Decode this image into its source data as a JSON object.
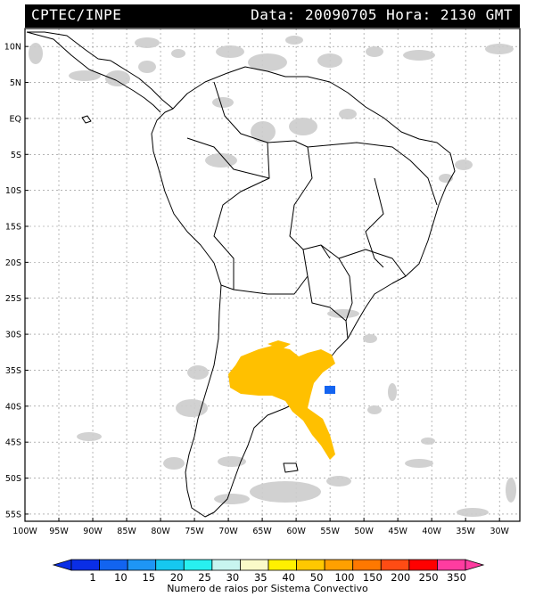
{
  "header": {
    "left": "CPTEC/INPE",
    "right": "Data: 20090705 Hora: 2130 GMT"
  },
  "map": {
    "lat_labels": [
      "10N",
      "5N",
      "EQ",
      "5S",
      "10S",
      "15S",
      "20S",
      "25S",
      "30S",
      "35S",
      "40S",
      "45S",
      "50S",
      "55S"
    ],
    "lon_labels": [
      "100W",
      "95W",
      "90W",
      "85W",
      "80W",
      "75W",
      "70W",
      "65W",
      "60W",
      "55W",
      "50W",
      "45W",
      "40W",
      "35W",
      "30W"
    ]
  },
  "colorbar": {
    "labels": [
      "1",
      "10",
      "15",
      "20",
      "25",
      "30",
      "35",
      "40",
      "50",
      "100",
      "150",
      "200",
      "250",
      "350"
    ],
    "colors": [
      "#0a2ee6",
      "#1264f0",
      "#1e96f5",
      "#16c8f0",
      "#28f0f0",
      "#c8f5f0",
      "#fafac8",
      "#fff000",
      "#ffc800",
      "#ffa000",
      "#ff7800",
      "#ff4c14",
      "#ff0000",
      "#ff3ca0"
    ],
    "title": "Numero de raios por Sistema Convectivo"
  },
  "colors": {
    "gray_cloud": "#c8c8c8",
    "systems_orange": "#ffc000",
    "systems_blue": "#1464f0"
  }
}
